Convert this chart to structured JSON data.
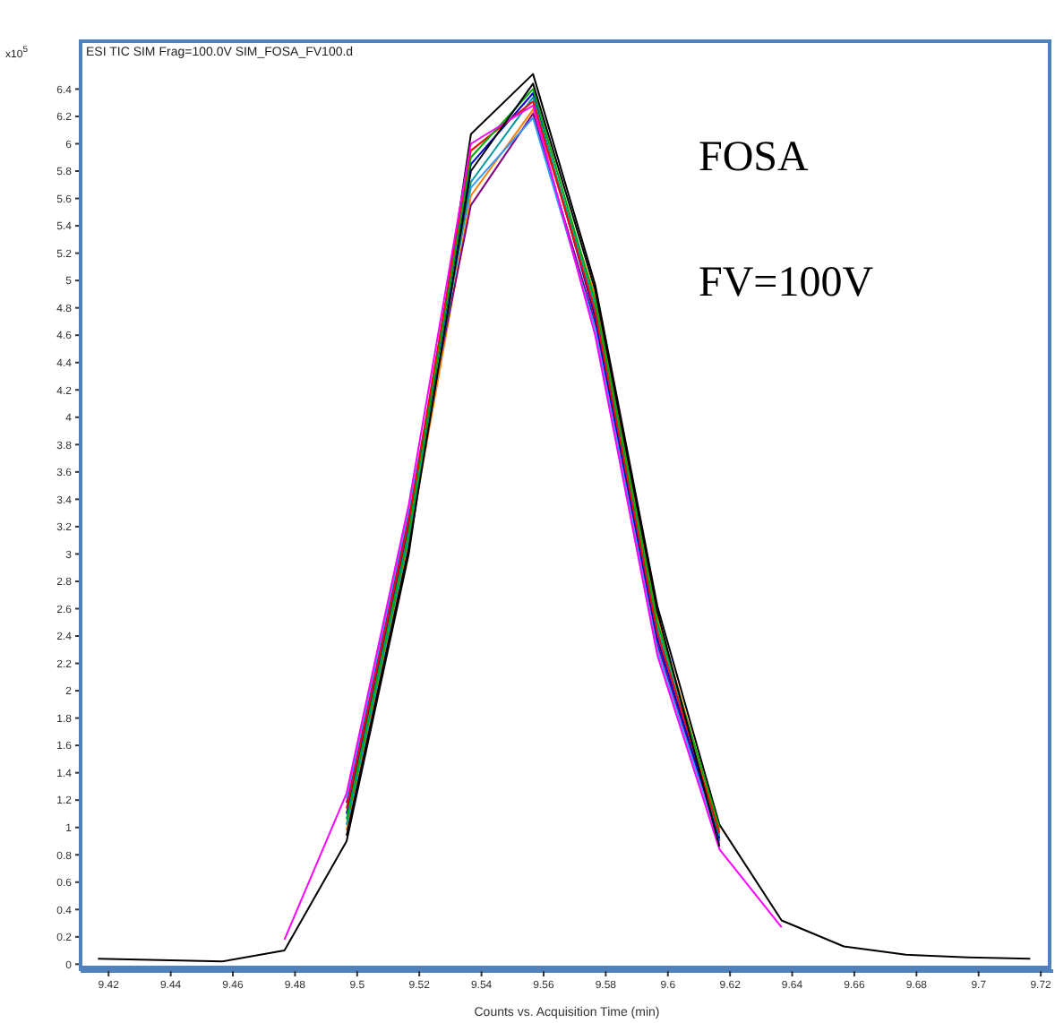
{
  "chart_data": {
    "type": "line",
    "title": "ESI TIC SIM Frag=100.0V SIM_FOSA_FV100.d",
    "xlabel": "Counts vs. Acquisition Time (min)",
    "ylabel": "x10$^{5}$",
    "annotations": [
      "FOSA",
      "FV=100V"
    ],
    "x": [
      9.4166,
      9.4366,
      9.4566,
      9.4766,
      9.4966,
      9.5166,
      9.5366,
      9.5566,
      9.5766,
      9.5966,
      9.6166,
      9.6366,
      9.6566,
      9.6766,
      9.6966,
      9.7166
    ],
    "series": [
      {
        "color": "#000000",
        "values": [
          0.04,
          0.03,
          0.02,
          0.1,
          0.9,
          3.0,
          6.07,
          6.51,
          4.97,
          2.62,
          1.02,
          0.32,
          0.13,
          0.07,
          0.05,
          0.04
        ]
      },
      {
        "color": "#ff8000",
        "values": [
          null,
          null,
          null,
          null,
          0.98,
          3.08,
          5.62,
          6.25,
          4.89,
          2.54,
          0.98,
          null,
          null,
          null,
          null,
          null
        ]
      },
      {
        "color": "#800080",
        "values": [
          null,
          null,
          null,
          null,
          1.18,
          3.28,
          5.55,
          6.22,
          4.69,
          2.34,
          0.9,
          null,
          null,
          null,
          null,
          null
        ]
      },
      {
        "color": "#3399ff",
        "values": [
          null,
          null,
          null,
          null,
          1.21,
          3.32,
          5.68,
          6.19,
          4.65,
          2.3,
          0.88,
          null,
          null,
          null,
          null,
          null
        ]
      },
      {
        "color": "#0000cc",
        "values": [
          null,
          null,
          null,
          null,
          1.1,
          3.2,
          5.85,
          6.37,
          4.73,
          2.38,
          0.92,
          null,
          null,
          null,
          null,
          null
        ]
      },
      {
        "color": "#009999",
        "values": [
          null,
          null,
          null,
          null,
          1.02,
          3.12,
          5.72,
          6.34,
          4.81,
          2.46,
          0.94,
          null,
          null,
          null,
          null,
          null
        ]
      },
      {
        "color": "#ff0000",
        "values": [
          null,
          null,
          null,
          null,
          1.14,
          3.24,
          5.95,
          6.31,
          4.77,
          2.42,
          0.96,
          null,
          null,
          null,
          null,
          null
        ]
      },
      {
        "color": "#00aa00",
        "values": [
          null,
          null,
          null,
          null,
          1.06,
          3.16,
          5.9,
          6.4,
          4.85,
          2.5,
          1.0,
          null,
          null,
          null,
          null,
          null
        ]
      },
      {
        "color": "#ff00ff",
        "values": [
          null,
          null,
          null,
          0.18,
          1.25,
          3.36,
          6.0,
          6.28,
          4.6,
          2.26,
          0.84,
          0.27,
          null,
          null,
          null,
          null
        ]
      },
      {
        "color": "#000000",
        "values": [
          null,
          null,
          null,
          null,
          0.94,
          3.04,
          5.8,
          6.44,
          4.93,
          2.58,
          0.86,
          null,
          null,
          null,
          null,
          null
        ]
      }
    ],
    "xlim": [
      9.411,
      9.724
    ],
    "ylim": [
      -0.05,
      6.75
    ],
    "xticks": [
      9.42,
      9.44,
      9.46,
      9.48,
      9.5,
      9.52,
      9.54,
      9.56,
      9.58,
      9.6,
      9.62,
      9.64,
      9.66,
      9.68,
      9.7,
      9.72
    ],
    "yticks": [
      0,
      0.2,
      0.4,
      0.6,
      0.8,
      1,
      1.2,
      1.4,
      1.6,
      1.8,
      2,
      2.2,
      2.4,
      2.6,
      2.8,
      3,
      3.2,
      3.4,
      3.6,
      3.8,
      4,
      4.2,
      4.4,
      4.6,
      4.8,
      5,
      5.2,
      5.4,
      5.6,
      5.8,
      6,
      6.2,
      6.4
    ],
    "grid": false,
    "legend": false,
    "marker": "none",
    "line_style": "solid"
  }
}
